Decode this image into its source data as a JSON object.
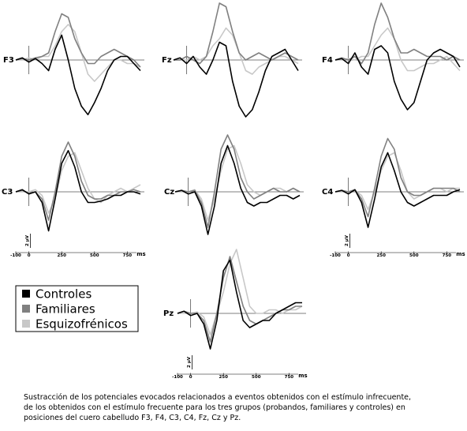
{
  "legend": [
    {
      "name": "Controles",
      "color": "#000000"
    },
    {
      "name": "Familiares",
      "color": "#808080"
    },
    {
      "name": "Esquizofrénicos",
      "color": "#c8c8c8"
    }
  ],
  "caption": [
    "Sustracción de los potenciales evocados relacionados a eventos obtenidos con el estímulo infrecuente,",
    "de los obtenidos con el estímulo frecuente para los tres grupos (probandos, familiares y controles) en",
    "posiciones del cuero cabelludo F3, F4, C3, C4, Fz, Cz y Pz."
  ],
  "chart_data": [
    {
      "type": "line",
      "title": "F3",
      "xlim": [
        -100,
        880
      ],
      "ylim": [
        -9,
        9
      ],
      "x": [
        -100,
        -50,
        0,
        50,
        100,
        150,
        200,
        250,
        300,
        350,
        400,
        450,
        500,
        550,
        600,
        650,
        700,
        750,
        800,
        850
      ],
      "series": [
        {
          "values": [
            0,
            0.3,
            -0.3,
            0.2,
            -0.5,
            -1.5,
            1.5,
            3.5,
            0,
            -4,
            -6.5,
            -7.7,
            -6,
            -4,
            -1.5,
            0,
            0.5,
            0.5,
            -0.5,
            -1.5
          ]
        },
        {
          "values": [
            0,
            0.2,
            0,
            0.3,
            0.5,
            1,
            4,
            6.5,
            6,
            3,
            1,
            -0.5,
            -0.5,
            0.5,
            1,
            1.5,
            1,
            0.5,
            0,
            -1
          ]
        },
        {
          "values": [
            0,
            0,
            0.3,
            0,
            0.5,
            0.5,
            2,
            4,
            5,
            4,
            1,
            -2,
            -3,
            -2,
            -1,
            0,
            0,
            -0.5,
            -0.5,
            -1
          ]
        }
      ]
    },
    {
      "type": "line",
      "title": "Fz",
      "xlim": [
        -100,
        880
      ],
      "ylim": [
        -9,
        9
      ],
      "x": [
        -100,
        -50,
        0,
        50,
        100,
        150,
        200,
        250,
        300,
        350,
        400,
        450,
        500,
        550,
        600,
        650,
        700,
        750,
        800,
        850
      ],
      "series": [
        {
          "values": [
            0,
            0.3,
            -0.5,
            0.5,
            -1,
            -2,
            0,
            2.5,
            2,
            -3,
            -6.5,
            -8,
            -7,
            -4.5,
            -1.5,
            0.5,
            1,
            1.5,
            0,
            -1.5
          ]
        },
        {
          "values": [
            0,
            0,
            0.5,
            0,
            -0.5,
            0.5,
            4,
            8,
            7.5,
            4,
            1,
            0,
            0.5,
            1,
            0.5,
            0,
            0.5,
            1,
            0.5,
            0
          ]
        },
        {
          "values": [
            0,
            0,
            0,
            0.5,
            0,
            0.5,
            2,
            3,
            4.5,
            3.5,
            1,
            -1.5,
            -2,
            -1,
            -0.5,
            0,
            0.5,
            0.5,
            0,
            -0.5
          ]
        }
      ]
    },
    {
      "type": "line",
      "title": "F4",
      "xlim": [
        -100,
        880
      ],
      "ylim": [
        -9,
        9
      ],
      "x": [
        -100,
        -50,
        0,
        50,
        100,
        150,
        200,
        250,
        300,
        350,
        400,
        450,
        500,
        550,
        600,
        650,
        700,
        750,
        800,
        850
      ],
      "series": [
        {
          "values": [
            0,
            0.2,
            -0.5,
            1,
            -1,
            -2,
            1.5,
            2,
            1,
            -3,
            -5.5,
            -7,
            -6,
            -3,
            0,
            1,
            1.5,
            1,
            0.5,
            -1
          ]
        },
        {
          "values": [
            0,
            0.3,
            0,
            0.5,
            -0.5,
            1,
            5,
            8,
            6,
            3,
            1,
            1,
            1.5,
            1,
            0.5,
            0.5,
            0.5,
            0,
            0.5,
            0
          ]
        },
        {
          "values": [
            0,
            0,
            0.2,
            0,
            0.5,
            0.5,
            2,
            3.5,
            4.5,
            3,
            0,
            -1.5,
            -1.5,
            -1,
            -0.5,
            -0.5,
            0,
            0.5,
            -0.5,
            -1.5
          ]
        }
      ]
    },
    {
      "type": "line",
      "title": "C3",
      "xlim": [
        -100,
        880
      ],
      "ylim": [
        -9,
        9
      ],
      "xticks": [
        -100,
        0,
        250,
        500,
        750
      ],
      "xlabel": "ms",
      "scale_label": "2 µV",
      "x": [
        -100,
        -50,
        0,
        50,
        100,
        150,
        200,
        250,
        300,
        350,
        400,
        450,
        500,
        550,
        600,
        650,
        700,
        750,
        800,
        850
      ],
      "series": [
        {
          "values": [
            0,
            0.3,
            -0.3,
            0,
            -1.5,
            -5.5,
            -1,
            4,
            5.8,
            3.5,
            0,
            -1.5,
            -1.5,
            -1.3,
            -1,
            -0.5,
            -0.5,
            0,
            0,
            -0.3
          ]
        },
        {
          "values": [
            0,
            0.2,
            -0.2,
            0,
            -1,
            -4,
            0,
            5,
            7,
            5,
            1.5,
            -0.5,
            -1,
            -1,
            -0.5,
            -0.5,
            0,
            0,
            0.3,
            0
          ]
        },
        {
          "values": [
            0,
            0,
            0,
            0.3,
            -0.5,
            -3,
            -1,
            3,
            5,
            5.5,
            3,
            0.5,
            -1,
            -1.5,
            -0.5,
            0,
            0.5,
            0,
            0.5,
            1
          ]
        }
      ]
    },
    {
      "type": "line",
      "title": "Cz",
      "xlim": [
        -100,
        880
      ],
      "ylim": [
        -9,
        9
      ],
      "x": [
        -100,
        -50,
        0,
        50,
        100,
        150,
        200,
        250,
        300,
        350,
        400,
        450,
        500,
        550,
        600,
        650,
        700,
        750,
        800,
        850
      ],
      "series": [
        {
          "values": [
            0,
            0.2,
            -0.3,
            0,
            -2,
            -6,
            -2,
            4,
            6.5,
            4,
            0.5,
            -1.5,
            -2,
            -1.5,
            -1.5,
            -1,
            -0.5,
            -0.5,
            -1,
            -0.5
          ]
        },
        {
          "values": [
            0,
            0.2,
            0,
            0.2,
            -1.5,
            -5,
            0,
            6,
            8,
            6,
            2,
            0,
            -1,
            -0.5,
            0,
            0.5,
            0,
            0,
            0.5,
            0
          ]
        },
        {
          "values": [
            0,
            0,
            0,
            0.3,
            -1,
            -4,
            -1,
            3,
            6,
            6.5,
            4,
            1,
            0,
            -0.5,
            0,
            0.5,
            0.5,
            0,
            0.5,
            0
          ]
        }
      ]
    },
    {
      "type": "line",
      "title": "C4",
      "xlim": [
        -100,
        880
      ],
      "ylim": [
        -9,
        9
      ],
      "xticks": [
        -100,
        0,
        250,
        500,
        750
      ],
      "xlabel": "ms",
      "scale_label": "2 µV",
      "x": [
        -100,
        -50,
        0,
        50,
        100,
        150,
        200,
        250,
        300,
        350,
        400,
        450,
        500,
        550,
        600,
        650,
        700,
        750,
        800,
        850
      ],
      "series": [
        {
          "values": [
            0,
            0.2,
            -0.3,
            0.3,
            -1.5,
            -5,
            -1,
            3.5,
            5.5,
            3,
            0,
            -1.5,
            -2,
            -1.5,
            -1,
            -0.5,
            -0.5,
            -0.5,
            0,
            0.3
          ]
        },
        {
          "values": [
            0,
            0.2,
            0,
            0.3,
            -1,
            -3.5,
            0.5,
            5,
            7.5,
            6,
            2,
            0,
            -0.5,
            -0.5,
            0,
            0.5,
            0.5,
            0.5,
            0.5,
            0
          ]
        },
        {
          "values": [
            0,
            0,
            0,
            0.2,
            -0.5,
            -2.5,
            0,
            3,
            5,
            5.5,
            3,
            0,
            -1,
            -0.5,
            0,
            0.5,
            0.5,
            0,
            0.5,
            0.5
          ]
        }
      ]
    },
    {
      "type": "line",
      "title": "Pz",
      "xlim": [
        -100,
        880
      ],
      "ylim": [
        -9,
        9
      ],
      "xticks": [
        -100,
        0,
        250,
        500,
        750
      ],
      "xlabel": "ms",
      "scale_label": "2 µV",
      "x": [
        -100,
        -50,
        0,
        50,
        100,
        150,
        200,
        250,
        300,
        350,
        400,
        450,
        500,
        550,
        600,
        650,
        700,
        750,
        800,
        850
      ],
      "series": [
        {
          "values": [
            0,
            0.3,
            -0.3,
            0,
            -1.5,
            -5,
            -1,
            6,
            7.5,
            3,
            -1,
            -2,
            -1.5,
            -1,
            -1,
            0,
            0.5,
            1,
            1.5,
            1.5
          ]
        },
        {
          "values": [
            0,
            0.3,
            0,
            0,
            -1,
            -4,
            0,
            5,
            8,
            4.5,
            1,
            -1,
            -1.5,
            -1,
            -0.5,
            0,
            0.5,
            0.5,
            1,
            1
          ]
        },
        {
          "values": [
            0,
            0,
            0,
            0.2,
            -0.5,
            -3,
            0,
            3,
            7,
            9,
            5,
            1,
            0,
            0,
            0.5,
            0.5,
            0,
            0.5,
            0.5,
            1
          ]
        }
      ]
    }
  ]
}
